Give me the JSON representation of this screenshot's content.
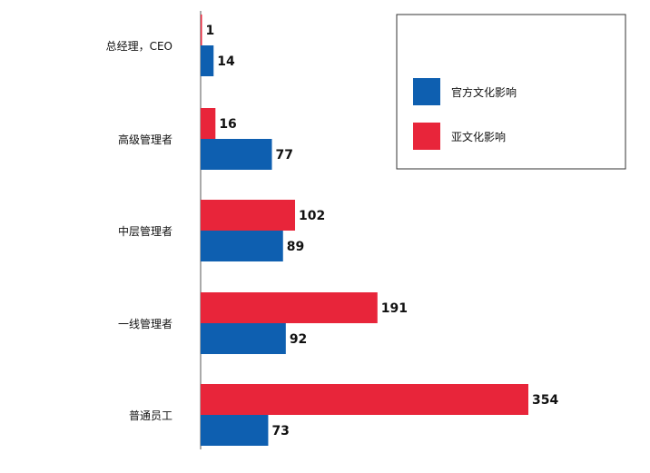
{
  "chart_data": {
    "type": "bar",
    "orientation": "horizontal",
    "categories": [
      "总经理，CEO",
      "高级管理者",
      "中层管理者",
      "一线管理者",
      "普通员工"
    ],
    "series": [
      {
        "name": "亚文化影响",
        "color": "#e8253a",
        "values": [
          1,
          16,
          102,
          191,
          354
        ]
      },
      {
        "name": "官方文化影响",
        "color": "#0e5fb0",
        "values": [
          14,
          77,
          89,
          92,
          73
        ]
      }
    ],
    "xlim": [
      0,
      354
    ],
    "grid": false,
    "legend_position": "top-right",
    "legend_order": [
      1,
      0
    ]
  }
}
